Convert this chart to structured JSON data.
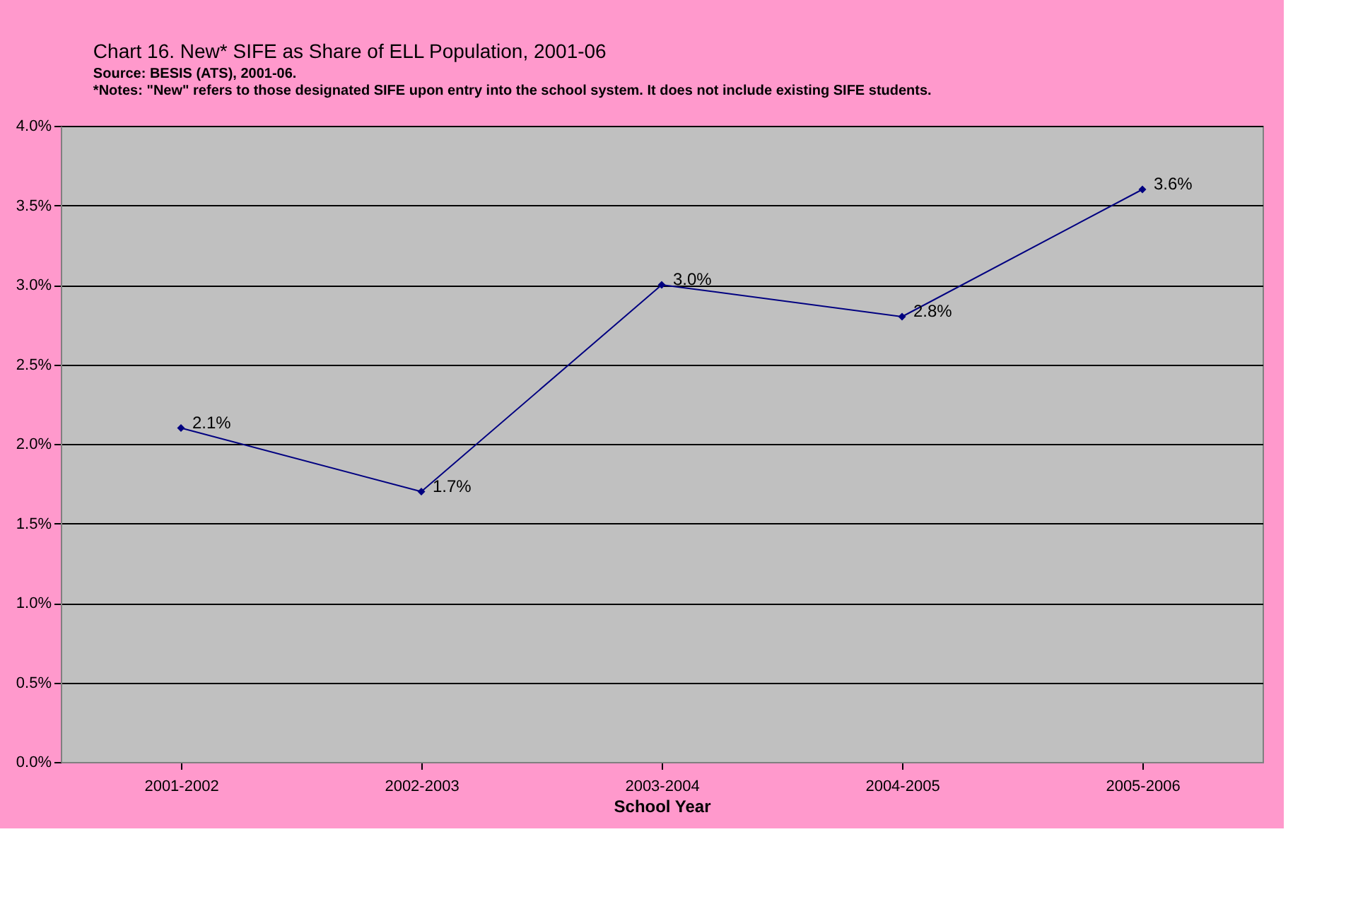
{
  "chart_data": {
    "type": "line",
    "title": "Chart 16. New* SIFE as Share of ELL Population, 2001-06",
    "annotations": [
      "Source: BESIS (ATS), 2001-06.",
      "*Notes: \"New\" refers to those designated SIFE upon entry into the school system. It does not include existing SIFE students."
    ],
    "xlabel": "School Year",
    "categories": [
      "2001-2002",
      "2002-2003",
      "2003-2004",
      "2004-2005",
      "2005-2006"
    ],
    "series": [
      {
        "color": "#000080",
        "values": [
          2.1,
          1.7,
          3.0,
          2.8,
          3.6
        ],
        "value_labels": [
          "2.1%",
          "1.7%",
          "3.0%",
          "2.8%",
          "3.6%"
        ]
      }
    ],
    "ylim": [
      0,
      4
    ],
    "yticks": [
      {
        "value": 0,
        "label": "0.0%"
      },
      {
        "value": 0.5,
        "label": "0.5%"
      },
      {
        "value": 1,
        "label": "1.0%"
      },
      {
        "value": 1.5,
        "label": "1.5%"
      },
      {
        "value": 2,
        "label": "2.0%"
      },
      {
        "value": 2.5,
        "label": "2.5%"
      },
      {
        "value": 3,
        "label": "3.0%"
      },
      {
        "value": 3.5,
        "label": "3.5%"
      },
      {
        "value": 4,
        "label": "4.0%"
      }
    ],
    "grid": "y",
    "marker": "diamond",
    "line_style": "solid"
  }
}
